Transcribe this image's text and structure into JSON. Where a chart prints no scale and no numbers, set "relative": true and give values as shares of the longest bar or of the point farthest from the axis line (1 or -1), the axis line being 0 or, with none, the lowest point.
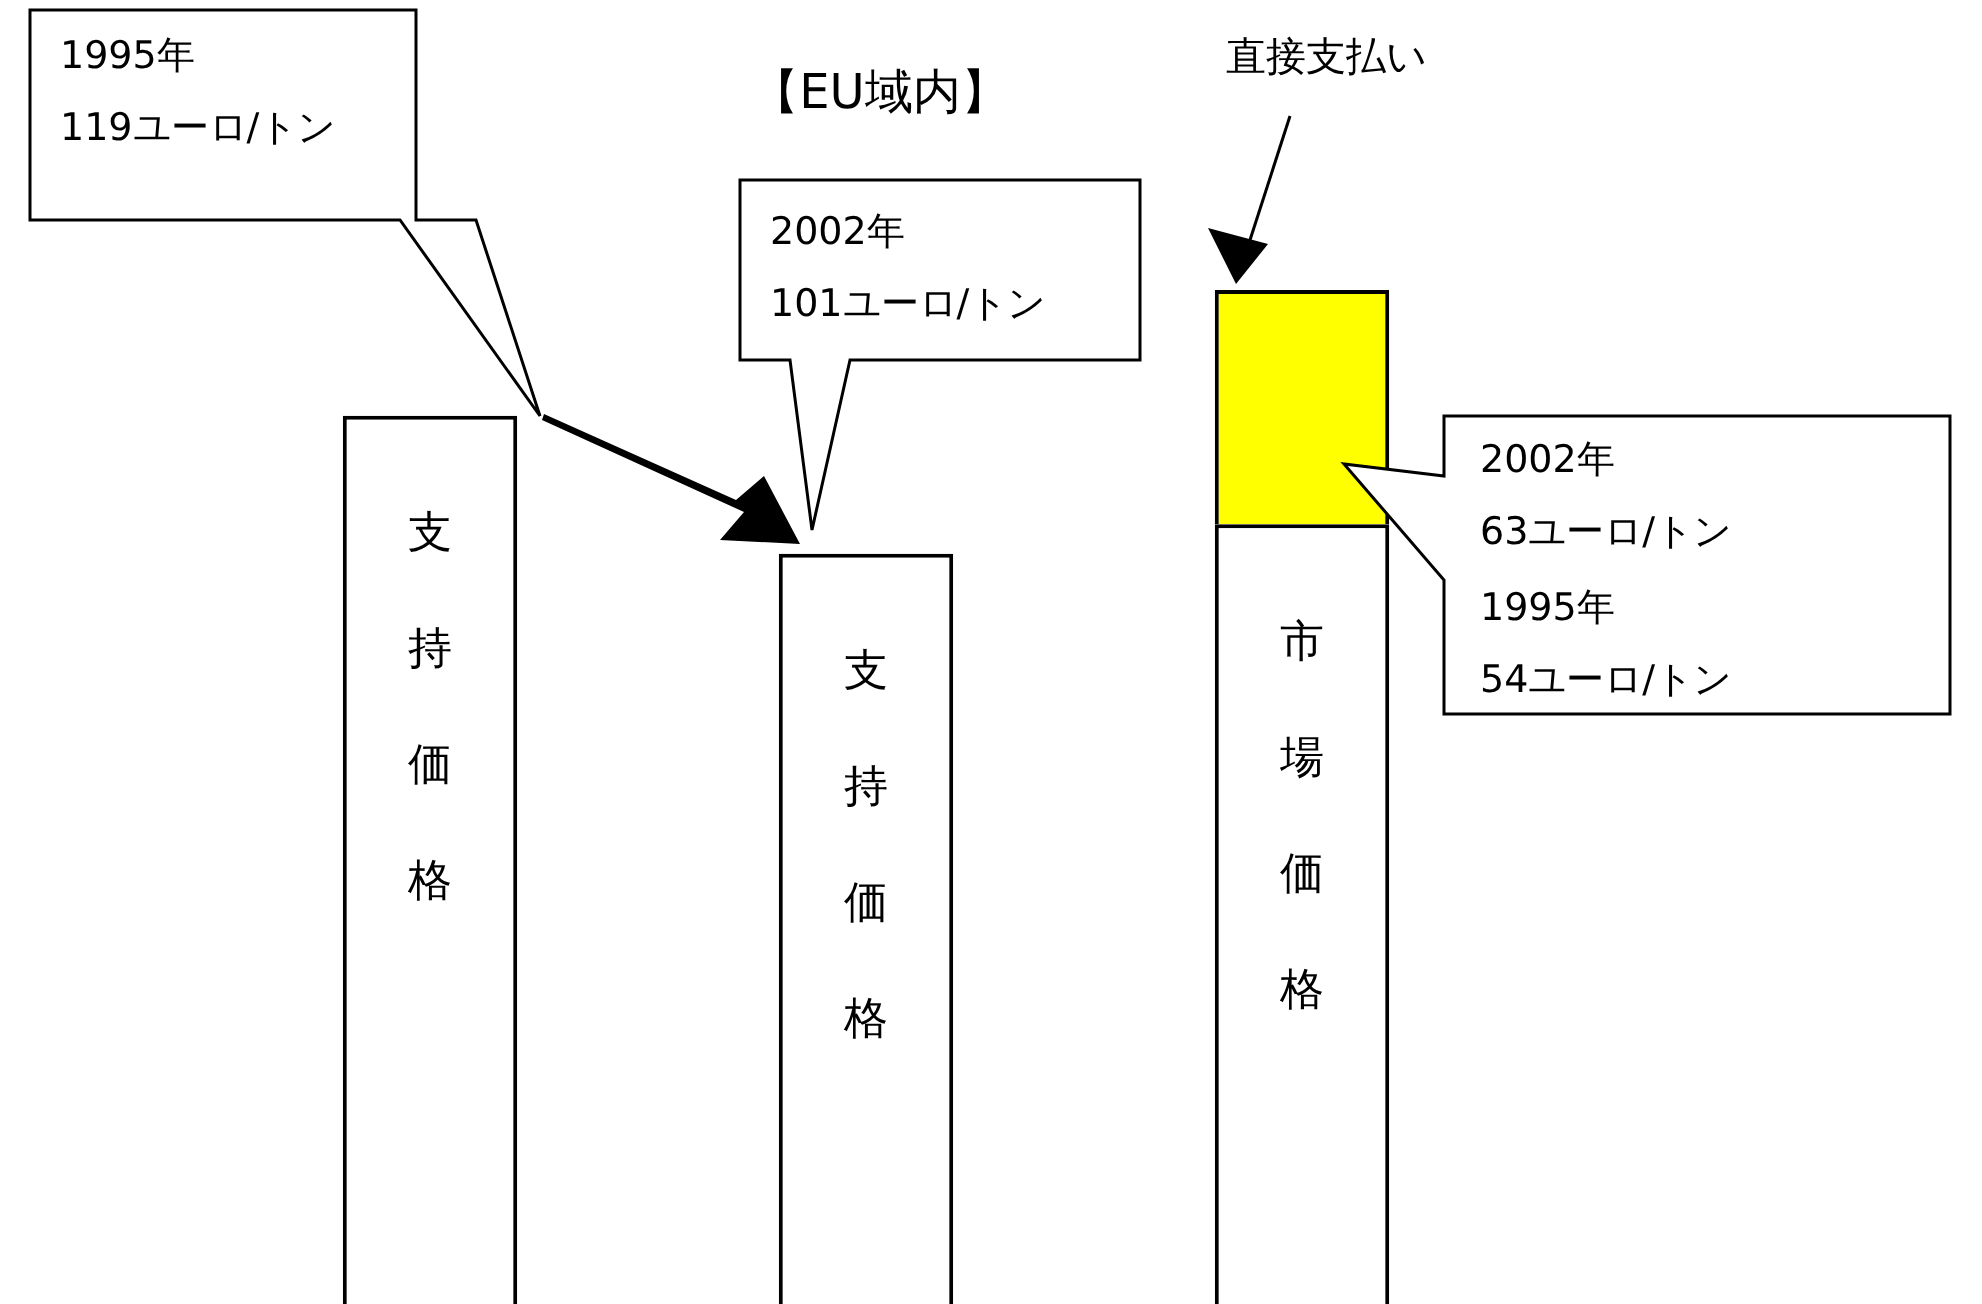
{
  "chart_data": {
    "type": "bar",
    "title": "【EU域内】",
    "relative": true,
    "stacked": true,
    "categories": [
      "支持価格",
      "支持価格",
      "市場価格"
    ],
    "series": [
      {
        "color": "#ffffff",
        "values": [
          0.876,
          0.74,
          0.769
        ]
      },
      {
        "name": "直接支払い",
        "color": "#ffff00",
        "values": [
          null,
          null,
          0.231
        ]
      }
    ],
    "annotations": [
      "1995年\n119ユーロ/トン",
      "2002年\n101ユーロ/トン",
      "2002年\n63ユーロ/トン",
      "1995年\n54ユーロ/トン"
    ]
  }
}
